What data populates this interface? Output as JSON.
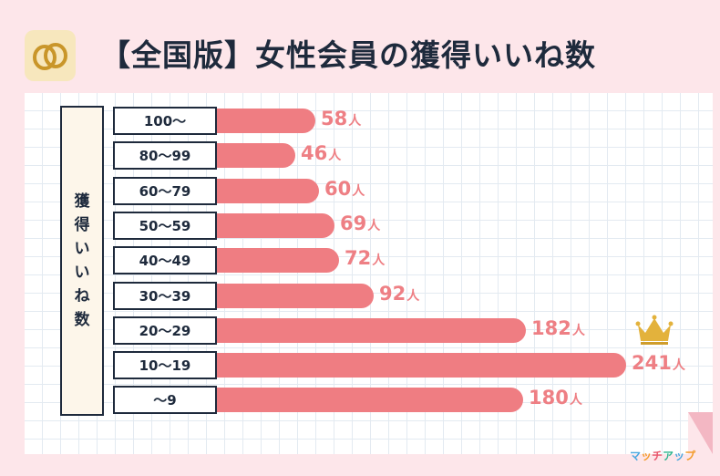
{
  "header": {
    "title": "【全国版】女性会員の獲得いいね数",
    "logo_icon": "double-ring-logo-icon"
  },
  "side_label_chars": [
    "獲",
    "得",
    "い",
    "い",
    "ね",
    "数"
  ],
  "unit": "人",
  "brand": {
    "text": "マッチアップ",
    "colors": [
      "#4aa8e0",
      "#f39c2c",
      "#e8566b",
      "#2fb48e",
      "#4aa8e0",
      "#f39c2c"
    ]
  },
  "colors": {
    "bar": "#ef7d82",
    "value": "#ee7f84",
    "border": "#1e2a3c",
    "crown": "#e3b23c"
  },
  "chart_data": {
    "type": "bar",
    "orientation": "horizontal",
    "title": "【全国版】女性会員の獲得いいね数",
    "ylabel": "獲得いいね数",
    "unit": "人",
    "categories": [
      "100〜",
      "80〜99",
      "60〜79",
      "50〜59",
      "40〜49",
      "30〜39",
      "20〜29",
      "10〜19",
      "〜9"
    ],
    "values": [
      58,
      46,
      60,
      69,
      72,
      92,
      182,
      241,
      180
    ],
    "value_labels": [
      "58",
      "46",
      "60",
      "69",
      "72",
      "92",
      "182",
      "241",
      "180"
    ],
    "highlight": {
      "category": "10〜19",
      "icon": "crown-icon"
    },
    "grid": true
  }
}
